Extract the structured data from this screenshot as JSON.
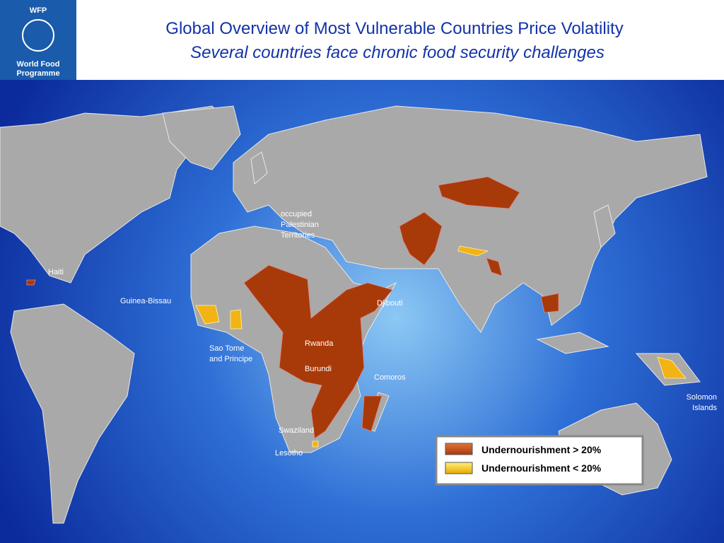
{
  "header": {
    "logo_acronym": "WFP",
    "logo_name": [
      "World Food",
      "Programme"
    ],
    "title": "Global Overview of Most Vulnerable Countries Price Volatility",
    "subtitle": "Several countries face chronic food security challenges"
  },
  "map": {
    "labels": [
      {
        "lines": [
          "Haiti"
        ]
      },
      {
        "lines": [
          "Guinea-Bissau"
        ]
      },
      {
        "lines": [
          "occupied",
          "Palestinian",
          "Territories"
        ]
      },
      {
        "lines": [
          "Djibouti"
        ]
      },
      {
        "lines": [
          "Rwanda"
        ]
      },
      {
        "lines": [
          "Burundi"
        ]
      },
      {
        "lines": [
          "Sao Tome",
          "and Principe"
        ]
      },
      {
        "lines": [
          "Comoros"
        ]
      },
      {
        "lines": [
          "Swaziland"
        ]
      },
      {
        "lines": [
          "Lesotho"
        ]
      },
      {
        "lines": [
          "Solomon",
          "Islands"
        ]
      }
    ],
    "legend": [
      {
        "label": "Undernourishment > 20%"
      },
      {
        "label": "Undernourishment < 20%"
      }
    ]
  }
}
